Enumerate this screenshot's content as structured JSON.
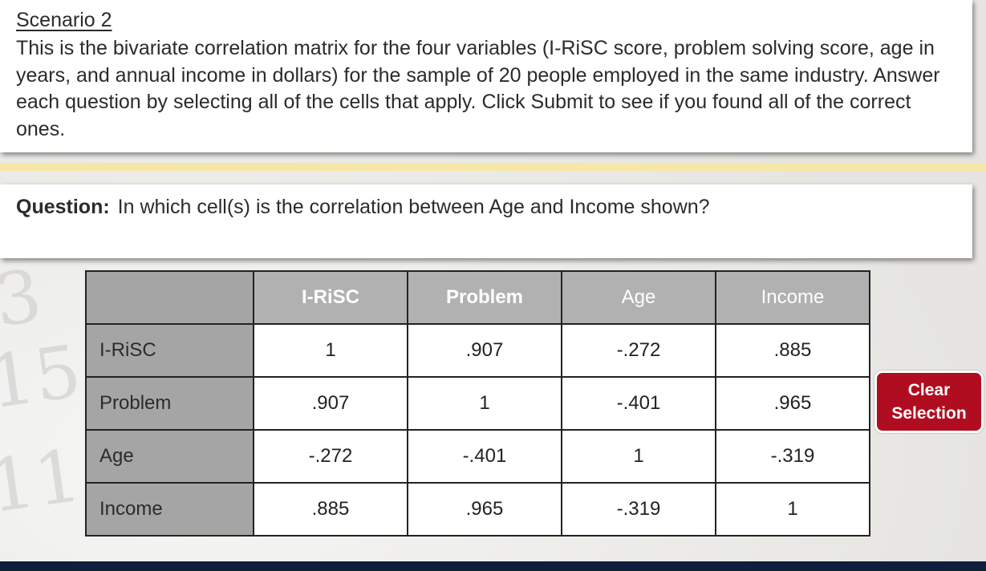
{
  "scenario": {
    "title": "Scenario 2",
    "text": "This is the bivariate correlation matrix for the four variables (I-RiSC score, problem solving score, age in years, and annual income in dollars) for the sample of 20 people employed in the same industry. Answer each question by selecting all of the cells that apply. Click Submit to see if you found all of the correct ones."
  },
  "question": {
    "label": "Question:",
    "text": "In which cell(s) is the correlation between Age and Income shown?"
  },
  "matrix": {
    "columns": [
      "I-RiSC",
      "Problem",
      "Age",
      "Income"
    ],
    "rows": [
      {
        "label": "I-RiSC",
        "values": [
          "1",
          ".907",
          "-.272",
          ".885"
        ]
      },
      {
        "label": "Problem",
        "values": [
          ".907",
          "1",
          "-.401",
          ".965"
        ]
      },
      {
        "label": "Age",
        "values": [
          "-.272",
          "-.401",
          "1",
          "-.319"
        ]
      },
      {
        "label": "Income",
        "values": [
          ".885",
          ".965",
          "-.319",
          "1"
        ]
      }
    ]
  },
  "clear_button": {
    "line1": "Clear",
    "line2": "Selection"
  },
  "colors": {
    "button": "#b10d20",
    "highlight_bar": "#f6e7a9",
    "footer": "#0e1f3b"
  }
}
